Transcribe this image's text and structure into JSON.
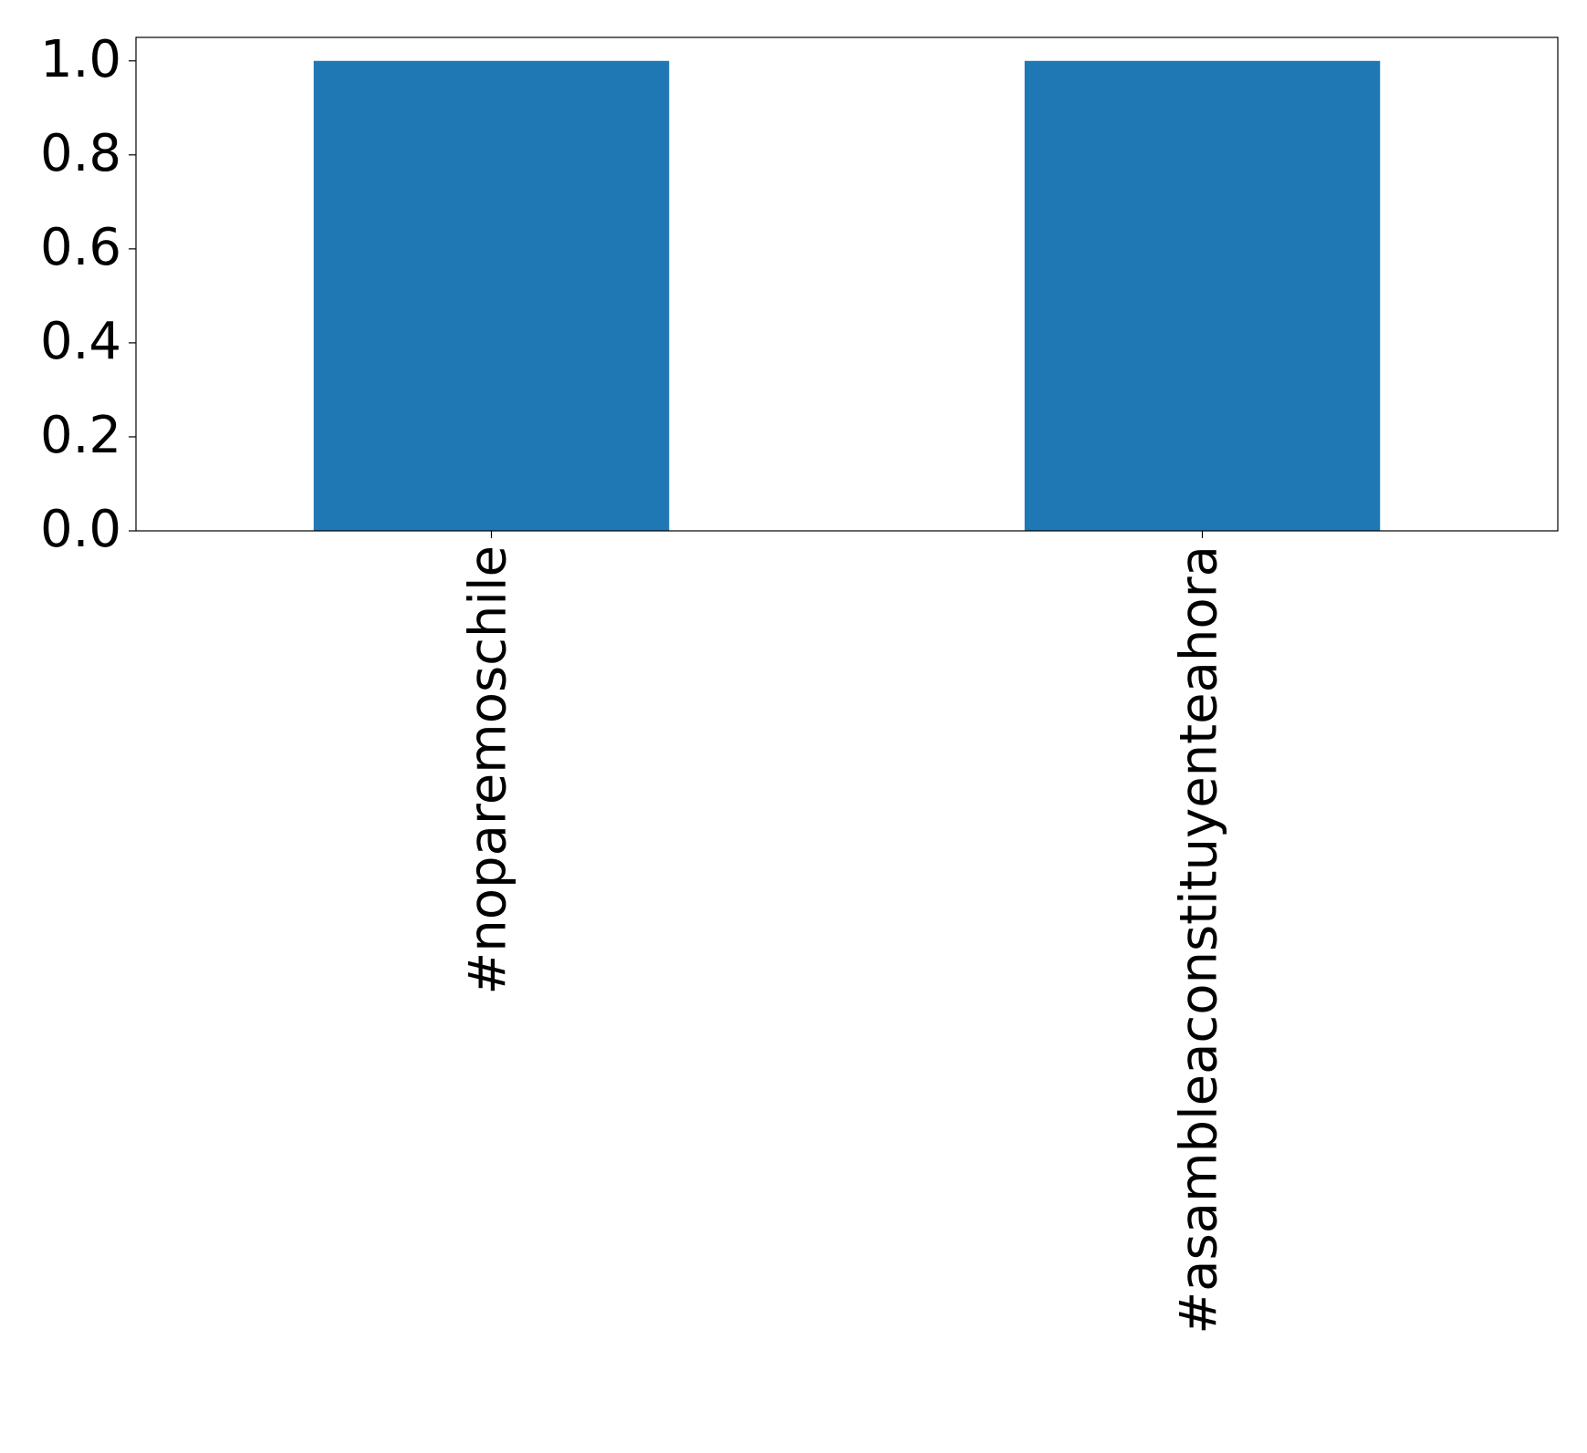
{
  "chart_data": {
    "type": "bar",
    "categories": [
      "#noparemoschile",
      "#asambleaconstituyenteahora"
    ],
    "values": [
      1,
      1
    ],
    "color": "#1f77b4",
    "ylim": [
      0,
      1.05
    ],
    "yticks": [
      {
        "value": 0,
        "label": "0.0"
      },
      0.2,
      0.4,
      0.6,
      0.8,
      {
        "value": 1,
        "label": "1.0"
      }
    ],
    "grid": false
  }
}
